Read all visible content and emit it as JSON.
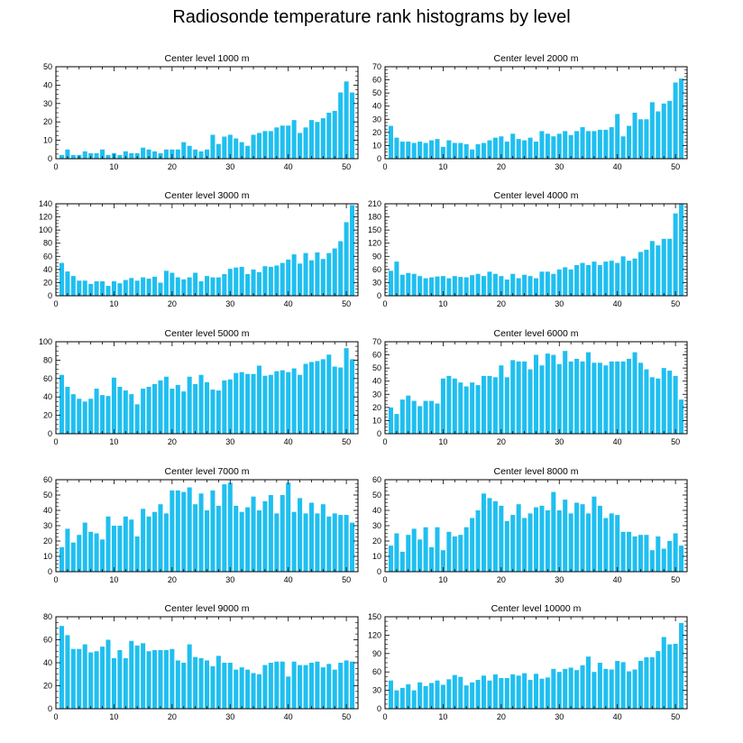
{
  "figure_title": "Radiosonde temperature rank histograms by level",
  "chart_data": [
    {
      "type": "bar",
      "title": "Center level 1000 m",
      "xlabel": "",
      "ylabel": "",
      "xlim": [
        0,
        52
      ],
      "ylim": [
        0,
        50
      ],
      "xticks": [
        0,
        10,
        20,
        30,
        40,
        50
      ],
      "yticks": [
        0,
        10,
        20,
        30,
        40,
        50
      ],
      "bar_color": "#1fbff0",
      "x": [
        1,
        2,
        3,
        4,
        5,
        6,
        7,
        8,
        9,
        10,
        11,
        12,
        13,
        14,
        15,
        16,
        17,
        18,
        19,
        20,
        21,
        22,
        23,
        24,
        25,
        26,
        27,
        28,
        29,
        30,
        31,
        32,
        33,
        34,
        35,
        36,
        37,
        38,
        39,
        40,
        41,
        42,
        43,
        44,
        45,
        46,
        47,
        48,
        49,
        50,
        51
      ],
      "values": [
        2,
        5,
        2,
        2,
        4,
        3,
        3,
        5,
        2,
        3,
        2,
        4,
        3,
        3,
        6,
        5,
        4,
        3,
        5,
        5,
        5,
        9,
        7,
        5,
        4,
        5,
        13,
        8,
        12,
        13,
        11,
        9,
        7,
        13,
        14,
        15,
        15,
        17,
        18,
        18,
        21,
        14,
        17,
        21,
        20,
        22,
        25,
        26,
        36,
        42,
        36
      ]
    },
    {
      "type": "bar",
      "title": "Center level 2000 m",
      "xlabel": "",
      "ylabel": "",
      "xlim": [
        0,
        52
      ],
      "ylim": [
        0,
        70
      ],
      "xticks": [
        0,
        10,
        20,
        30,
        40,
        50
      ],
      "yticks": [
        0,
        10,
        20,
        30,
        40,
        50,
        60,
        70
      ],
      "bar_color": "#1fbff0",
      "x": [
        1,
        2,
        3,
        4,
        5,
        6,
        7,
        8,
        9,
        10,
        11,
        12,
        13,
        14,
        15,
        16,
        17,
        18,
        19,
        20,
        21,
        22,
        23,
        24,
        25,
        26,
        27,
        28,
        29,
        30,
        31,
        32,
        33,
        34,
        35,
        36,
        37,
        38,
        39,
        40,
        41,
        42,
        43,
        44,
        45,
        46,
        47,
        48,
        49,
        50,
        51
      ],
      "values": [
        25,
        16,
        13,
        13,
        12,
        13,
        12,
        14,
        15,
        9,
        14,
        12,
        12,
        11,
        7,
        11,
        12,
        14,
        16,
        17,
        13,
        19,
        15,
        14,
        16,
        13,
        21,
        19,
        17,
        19,
        21,
        18,
        21,
        24,
        21,
        21,
        22,
        22,
        24,
        34,
        17,
        25,
        35,
        30,
        30,
        43,
        36,
        42,
        44,
        58,
        61
      ]
    },
    {
      "type": "bar",
      "title": "Center level 3000 m",
      "xlabel": "",
      "ylabel": "",
      "xlim": [
        0,
        52
      ],
      "ylim": [
        0,
        140
      ],
      "xticks": [
        0,
        10,
        20,
        30,
        40,
        50
      ],
      "yticks": [
        0,
        20,
        40,
        60,
        80,
        100,
        120,
        140
      ],
      "bar_color": "#1fbff0",
      "x": [
        1,
        2,
        3,
        4,
        5,
        6,
        7,
        8,
        9,
        10,
        11,
        12,
        13,
        14,
        15,
        16,
        17,
        18,
        19,
        20,
        21,
        22,
        23,
        24,
        25,
        26,
        27,
        28,
        29,
        30,
        31,
        32,
        33,
        34,
        35,
        36,
        37,
        38,
        39,
        40,
        41,
        42,
        43,
        44,
        45,
        46,
        47,
        48,
        49,
        50,
        51
      ],
      "values": [
        50,
        37,
        30,
        23,
        23,
        18,
        22,
        22,
        15,
        22,
        19,
        24,
        27,
        23,
        28,
        26,
        29,
        20,
        38,
        35,
        28,
        25,
        28,
        35,
        22,
        30,
        28,
        28,
        33,
        41,
        43,
        44,
        33,
        40,
        36,
        45,
        44,
        46,
        50,
        55,
        63,
        49,
        65,
        54,
        66,
        56,
        65,
        72,
        83,
        112,
        138
      ]
    },
    {
      "type": "bar",
      "title": "Center level 4000 m",
      "xlabel": "",
      "ylabel": "",
      "xlim": [
        0,
        52
      ],
      "ylim": [
        0,
        210
      ],
      "xticks": [
        0,
        10,
        20,
        30,
        40,
        50
      ],
      "yticks": [
        0,
        30,
        60,
        90,
        120,
        150,
        180,
        210
      ],
      "bar_color": "#1fbff0",
      "x": [
        1,
        2,
        3,
        4,
        5,
        6,
        7,
        8,
        9,
        10,
        11,
        12,
        13,
        14,
        15,
        16,
        17,
        18,
        19,
        20,
        21,
        22,
        23,
        24,
        25,
        26,
        27,
        28,
        29,
        30,
        31,
        32,
        33,
        34,
        35,
        36,
        37,
        38,
        39,
        40,
        41,
        42,
        43,
        44,
        45,
        46,
        47,
        48,
        49,
        50,
        51
      ],
      "values": [
        57,
        78,
        48,
        52,
        50,
        45,
        40,
        42,
        44,
        45,
        40,
        45,
        43,
        42,
        47,
        50,
        45,
        55,
        50,
        45,
        37,
        50,
        40,
        48,
        45,
        40,
        55,
        55,
        50,
        60,
        65,
        60,
        70,
        75,
        70,
        78,
        70,
        78,
        80,
        75,
        90,
        80,
        85,
        100,
        105,
        125,
        115,
        130,
        130,
        188,
        210
      ]
    },
    {
      "type": "bar",
      "title": "Center level 5000 m",
      "xlabel": "",
      "ylabel": "",
      "xlim": [
        0,
        52
      ],
      "ylim": [
        0,
        100
      ],
      "xticks": [
        0,
        10,
        20,
        30,
        40,
        50
      ],
      "yticks": [
        0,
        20,
        40,
        60,
        80,
        100
      ],
      "bar_color": "#1fbff0",
      "x": [
        1,
        2,
        3,
        4,
        5,
        6,
        7,
        8,
        9,
        10,
        11,
        12,
        13,
        14,
        15,
        16,
        17,
        18,
        19,
        20,
        21,
        22,
        23,
        24,
        25,
        26,
        27,
        28,
        29,
        30,
        31,
        32,
        33,
        34,
        35,
        36,
        37,
        38,
        39,
        40,
        41,
        42,
        43,
        44,
        45,
        46,
        47,
        48,
        49,
        50,
        51
      ],
      "values": [
        64,
        51,
        43,
        38,
        35,
        38,
        49,
        42,
        41,
        61,
        51,
        47,
        43,
        32,
        49,
        51,
        54,
        58,
        62,
        49,
        53,
        46,
        62,
        54,
        64,
        56,
        48,
        47,
        58,
        59,
        66,
        67,
        65,
        65,
        74,
        63,
        64,
        68,
        69,
        67,
        71,
        64,
        76,
        78,
        79,
        81,
        86,
        73,
        72,
        93,
        81
      ]
    },
    {
      "type": "bar",
      "title": "Center level 6000 m",
      "xlabel": "",
      "ylabel": "",
      "xlim": [
        0,
        52
      ],
      "ylim": [
        0,
        70
      ],
      "xticks": [
        0,
        10,
        20,
        30,
        40,
        50
      ],
      "yticks": [
        0,
        10,
        20,
        30,
        40,
        50,
        60,
        70
      ],
      "bar_color": "#1fbff0",
      "x": [
        1,
        2,
        3,
        4,
        5,
        6,
        7,
        8,
        9,
        10,
        11,
        12,
        13,
        14,
        15,
        16,
        17,
        18,
        19,
        20,
        21,
        22,
        23,
        24,
        25,
        26,
        27,
        28,
        29,
        30,
        31,
        32,
        33,
        34,
        35,
        36,
        37,
        38,
        39,
        40,
        41,
        42,
        43,
        44,
        45,
        46,
        47,
        48,
        49,
        50,
        51
      ],
      "values": [
        20,
        15,
        26,
        29,
        25,
        21,
        25,
        25,
        23,
        42,
        44,
        42,
        39,
        36,
        39,
        37,
        44,
        44,
        43,
        52,
        43,
        56,
        55,
        55,
        49,
        60,
        52,
        61,
        60,
        53,
        63,
        55,
        57,
        55,
        62,
        54,
        54,
        52,
        55,
        55,
        55,
        57,
        62,
        54,
        49,
        43,
        42,
        50,
        48,
        44,
        26
      ]
    },
    {
      "type": "bar",
      "title": "Center level 7000 m",
      "xlabel": "",
      "ylabel": "",
      "xlim": [
        0,
        52
      ],
      "ylim": [
        0,
        60
      ],
      "xticks": [
        0,
        10,
        20,
        30,
        40,
        50
      ],
      "yticks": [
        0,
        10,
        20,
        30,
        40,
        50,
        60
      ],
      "bar_color": "#1fbff0",
      "x": [
        1,
        2,
        3,
        4,
        5,
        6,
        7,
        8,
        9,
        10,
        11,
        12,
        13,
        14,
        15,
        16,
        17,
        18,
        19,
        20,
        21,
        22,
        23,
        24,
        25,
        26,
        27,
        28,
        29,
        30,
        31,
        32,
        33,
        34,
        35,
        36,
        37,
        38,
        39,
        40,
        41,
        42,
        43,
        44,
        45,
        46,
        47,
        48,
        49,
        50,
        51
      ],
      "values": [
        16,
        28,
        19,
        24,
        32,
        26,
        25,
        21,
        36,
        30,
        30,
        36,
        34,
        23,
        41,
        36,
        39,
        44,
        38,
        53,
        53,
        52,
        55,
        44,
        51,
        40,
        53,
        43,
        57,
        58,
        43,
        39,
        42,
        49,
        40,
        46,
        50,
        38,
        50,
        58,
        39,
        48,
        38,
        45,
        38,
        44,
        36,
        38,
        37,
        37,
        32
      ]
    },
    {
      "type": "bar",
      "title": "Center level 8000 m",
      "xlabel": "",
      "ylabel": "",
      "xlim": [
        0,
        52
      ],
      "ylim": [
        0,
        60
      ],
      "xticks": [
        0,
        10,
        20,
        30,
        40,
        50
      ],
      "yticks": [
        0,
        10,
        20,
        30,
        40,
        50,
        60
      ],
      "bar_color": "#1fbff0",
      "x": [
        1,
        2,
        3,
        4,
        5,
        6,
        7,
        8,
        9,
        10,
        11,
        12,
        13,
        14,
        15,
        16,
        17,
        18,
        19,
        20,
        21,
        22,
        23,
        24,
        25,
        26,
        27,
        28,
        29,
        30,
        31,
        32,
        33,
        34,
        35,
        36,
        37,
        38,
        39,
        40,
        41,
        42,
        43,
        44,
        45,
        46,
        47,
        48,
        49,
        50,
        51
      ],
      "values": [
        17,
        25,
        13,
        24,
        28,
        21,
        29,
        16,
        29,
        14,
        26,
        23,
        24,
        29,
        35,
        40,
        51,
        48,
        46,
        43,
        33,
        37,
        44,
        35,
        38,
        42,
        43,
        40,
        52,
        40,
        47,
        38,
        45,
        44,
        38,
        49,
        43,
        35,
        38,
        37,
        26,
        26,
        23,
        24,
        24,
        14,
        23,
        15,
        20,
        25,
        17
      ]
    },
    {
      "type": "bar",
      "title": "Center level 9000 m",
      "xlabel": "",
      "ylabel": "",
      "xlim": [
        0,
        52
      ],
      "ylim": [
        0,
        80
      ],
      "xticks": [
        0,
        10,
        20,
        30,
        40,
        50
      ],
      "yticks": [
        0,
        20,
        40,
        60,
        80
      ],
      "bar_color": "#1fbff0",
      "x": [
        1,
        2,
        3,
        4,
        5,
        6,
        7,
        8,
        9,
        10,
        11,
        12,
        13,
        14,
        15,
        16,
        17,
        18,
        19,
        20,
        21,
        22,
        23,
        24,
        25,
        26,
        27,
        28,
        29,
        30,
        31,
        32,
        33,
        34,
        35,
        36,
        37,
        38,
        39,
        40,
        41,
        42,
        43,
        44,
        45,
        46,
        47,
        48,
        49,
        50,
        51
      ],
      "values": [
        72,
        64,
        52,
        52,
        56,
        49,
        50,
        54,
        60,
        44,
        51,
        44,
        59,
        55,
        57,
        50,
        51,
        51,
        51,
        52,
        42,
        40,
        56,
        45,
        44,
        42,
        37,
        46,
        40,
        40,
        34,
        36,
        34,
        31,
        30,
        38,
        40,
        41,
        41,
        28,
        41,
        38,
        38,
        40,
        41,
        36,
        39,
        34,
        40,
        42,
        41
      ]
    },
    {
      "type": "bar",
      "title": "Center level 10000 m",
      "xlabel": "",
      "ylabel": "",
      "xlim": [
        0,
        52
      ],
      "ylim": [
        0,
        150
      ],
      "xticks": [
        0,
        10,
        20,
        30,
        40,
        50
      ],
      "yticks": [
        0,
        30,
        60,
        90,
        120,
        150
      ],
      "bar_color": "#1fbff0",
      "x": [
        1,
        2,
        3,
        4,
        5,
        6,
        7,
        8,
        9,
        10,
        11,
        12,
        13,
        14,
        15,
        16,
        17,
        18,
        19,
        20,
        21,
        22,
        23,
        24,
        25,
        26,
        27,
        28,
        29,
        30,
        31,
        32,
        33,
        34,
        35,
        36,
        37,
        38,
        39,
        40,
        41,
        42,
        43,
        44,
        45,
        46,
        47,
        48,
        49,
        50,
        51
      ],
      "values": [
        46,
        30,
        34,
        40,
        30,
        43,
        37,
        42,
        46,
        39,
        48,
        55,
        52,
        38,
        43,
        47,
        54,
        46,
        56,
        50,
        50,
        56,
        54,
        58,
        47,
        57,
        49,
        51,
        65,
        60,
        65,
        67,
        63,
        71,
        85,
        60,
        75,
        65,
        64,
        78,
        76,
        61,
        64,
        78,
        84,
        84,
        94,
        117,
        105,
        106,
        140
      ]
    }
  ]
}
